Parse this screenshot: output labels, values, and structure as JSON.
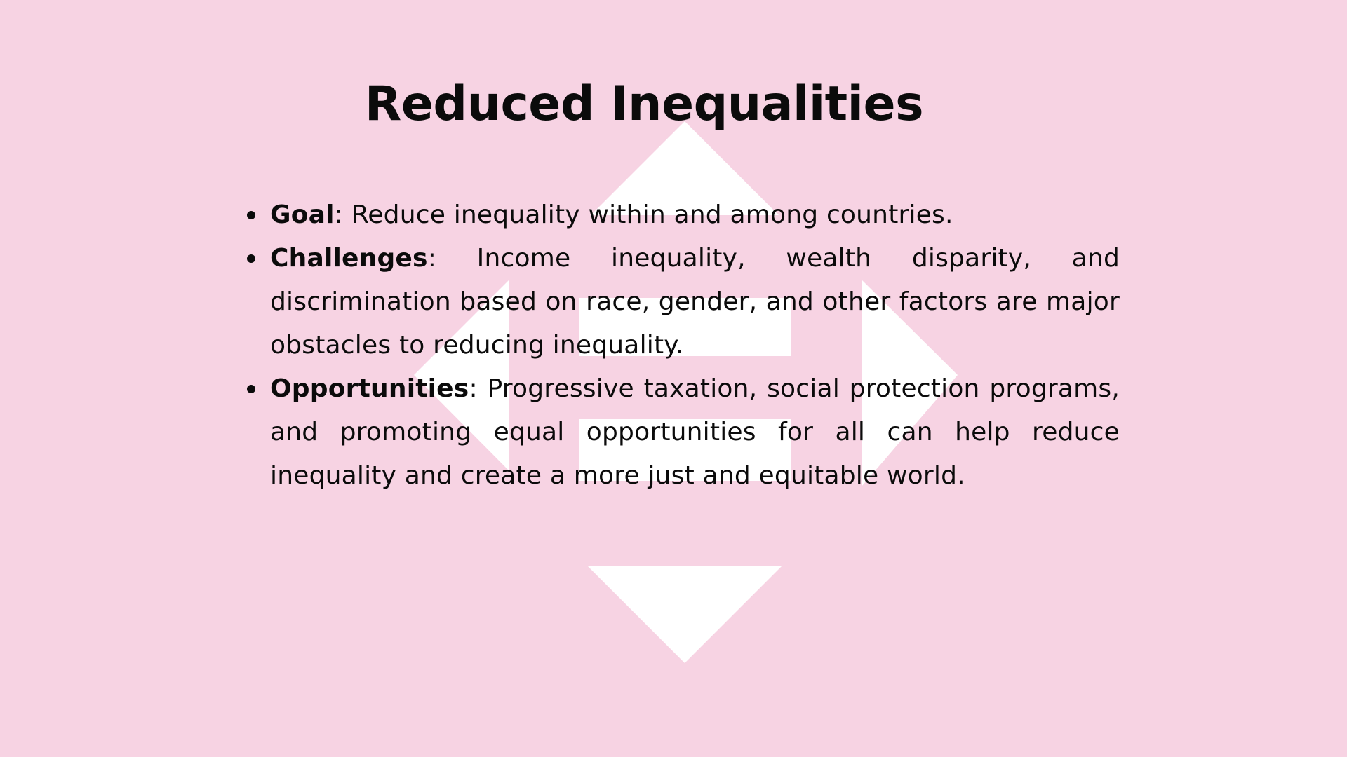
{
  "slide": {
    "title": "Reduced Inequalities",
    "background_color": "#f7d3e3",
    "symbol_color": "#ffffff",
    "symbol_icon": "reduced-inequalities-symbol-icon"
  },
  "bullets": [
    {
      "term": "Goal",
      "separator": ": ",
      "text": "Reduce inequality within and among countries."
    },
    {
      "term": "Challenges",
      "separator": ": ",
      "text": "Income inequality, wealth disparity, and discrimination based on race, gender, and other factors are major obstacles to reducing inequality."
    },
    {
      "term": "Opportunities",
      "separator": ": ",
      "text": "Progressive taxation, social protection programs, and promoting equal opportunities for all can help reduce inequality and create a more just and equitable world."
    }
  ]
}
